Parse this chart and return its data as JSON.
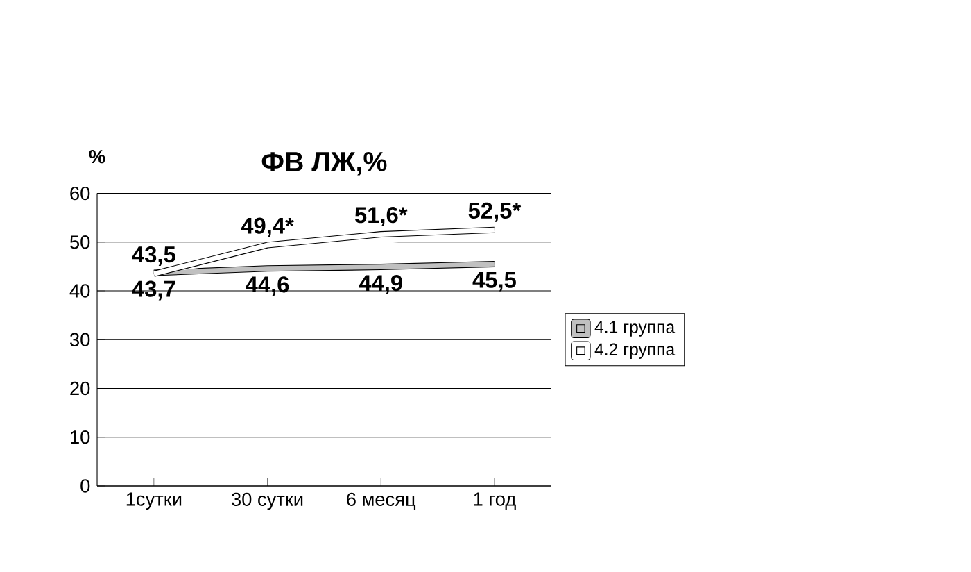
{
  "chart_data": {
    "type": "line",
    "title": "ФВ ЛЖ,%",
    "ylabel": "%",
    "categories": [
      "1сутки",
      "30 сутки",
      "6 месяц",
      "1 год"
    ],
    "series": [
      {
        "name": "4.1 группа",
        "color": "#c0c0c0",
        "values": [
          43.7,
          44.6,
          44.9,
          45.5
        ],
        "value_labels": [
          "43,7",
          "44,6",
          "44,9",
          "45,5"
        ]
      },
      {
        "name": "4.2 группа",
        "color": "#ffffff",
        "values": [
          43.5,
          49.4,
          51.6,
          52.5
        ],
        "value_labels": [
          "43,5",
          "49,4*",
          "51,6*",
          "52,5*"
        ]
      }
    ],
    "ylim": [
      0,
      60
    ],
    "yticks": [
      0,
      10,
      20,
      30,
      40,
      50,
      60
    ],
    "grid": "y",
    "legend": "right"
  }
}
